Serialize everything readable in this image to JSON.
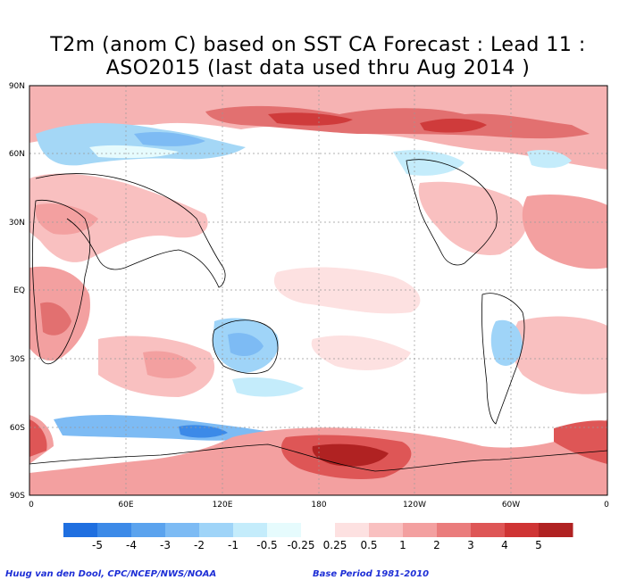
{
  "title": {
    "line1": "T2m (anom C) based on SST CA Forecast : Lead 11 :",
    "line2": "ASO2015 (last data used thru Aug 2014 )"
  },
  "map": {
    "lat_ticks": [
      "90N",
      "60N",
      "30N",
      "EQ",
      "30S",
      "60S",
      "90S"
    ],
    "lon_ticks": [
      "0",
      "60E",
      "120E",
      "180",
      "120W",
      "60W",
      "0"
    ]
  },
  "colorbar": {
    "labels": [
      "-5",
      "-4",
      "-3",
      "-2",
      "-1",
      "-0.5",
      "-0.25",
      "0.25",
      "0.5",
      "1",
      "2",
      "3",
      "4",
      "5"
    ],
    "colors": [
      "#1f6fe0",
      "#3c8ae8",
      "#5ba3ee",
      "#7dbbf4",
      "#9fd4f8",
      "#c4ecfb",
      "#e6fbfd",
      "#ffffff",
      "#fde1e1",
      "#f9c0c0",
      "#f3a0a0",
      "#ea7c7c",
      "#de5656",
      "#cf3434",
      "#b02222"
    ]
  },
  "credits": {
    "left": "Huug van den Dool, CPC/NCEP/NWS/NOAA",
    "right": "Base Period 1981-2010"
  }
}
